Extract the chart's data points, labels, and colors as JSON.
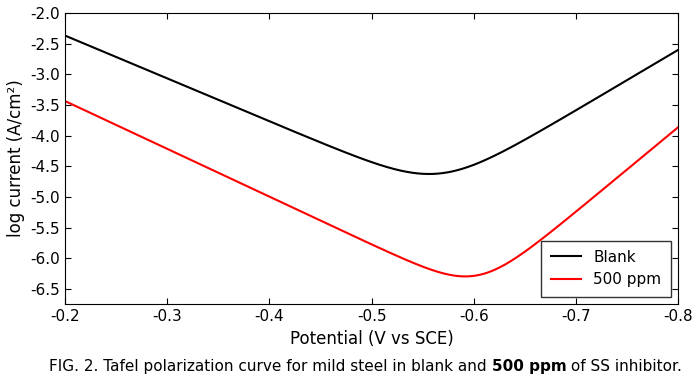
{
  "xlabel": "Potential (V vs SCE)",
  "ylabel": "log current (A/cm²)",
  "caption_normal": "FIG. 2. Tafel polarization curve for mild steel in blank and ",
  "caption_bold": "500 ppm",
  "caption_end": " of SS inhibitor.",
  "xlim": [
    -0.2,
    -0.8
  ],
  "ylim": [
    -6.75,
    -2.0
  ],
  "xticks": [
    -0.2,
    -0.3,
    -0.4,
    -0.5,
    -0.6,
    -0.7,
    -0.8
  ],
  "yticks": [
    -2.0,
    -2.5,
    -3.0,
    -3.5,
    -4.0,
    -4.5,
    -5.0,
    -5.5,
    -6.0,
    -6.5
  ],
  "blank_color": "#000000",
  "inhibitor_color": "#ff0000",
  "legend_labels": [
    "Blank",
    "500 ppm"
  ],
  "blank_Ecorr": -0.565,
  "blank_log_icorr": -4.62,
  "blank_ba": 6.99,
  "blank_bc": 9.87,
  "inh_Ecorr": -0.603,
  "inh_log_icorr": -6.28,
  "inh_ba": 7.8,
  "inh_bc": 13.8,
  "linewidth": 1.5,
  "background_color": "#ffffff",
  "legend_loc": "lower right",
  "legend_fontsize": 11,
  "axis_fontsize": 12,
  "tick_fontsize": 11,
  "caption_fontsize": 11
}
